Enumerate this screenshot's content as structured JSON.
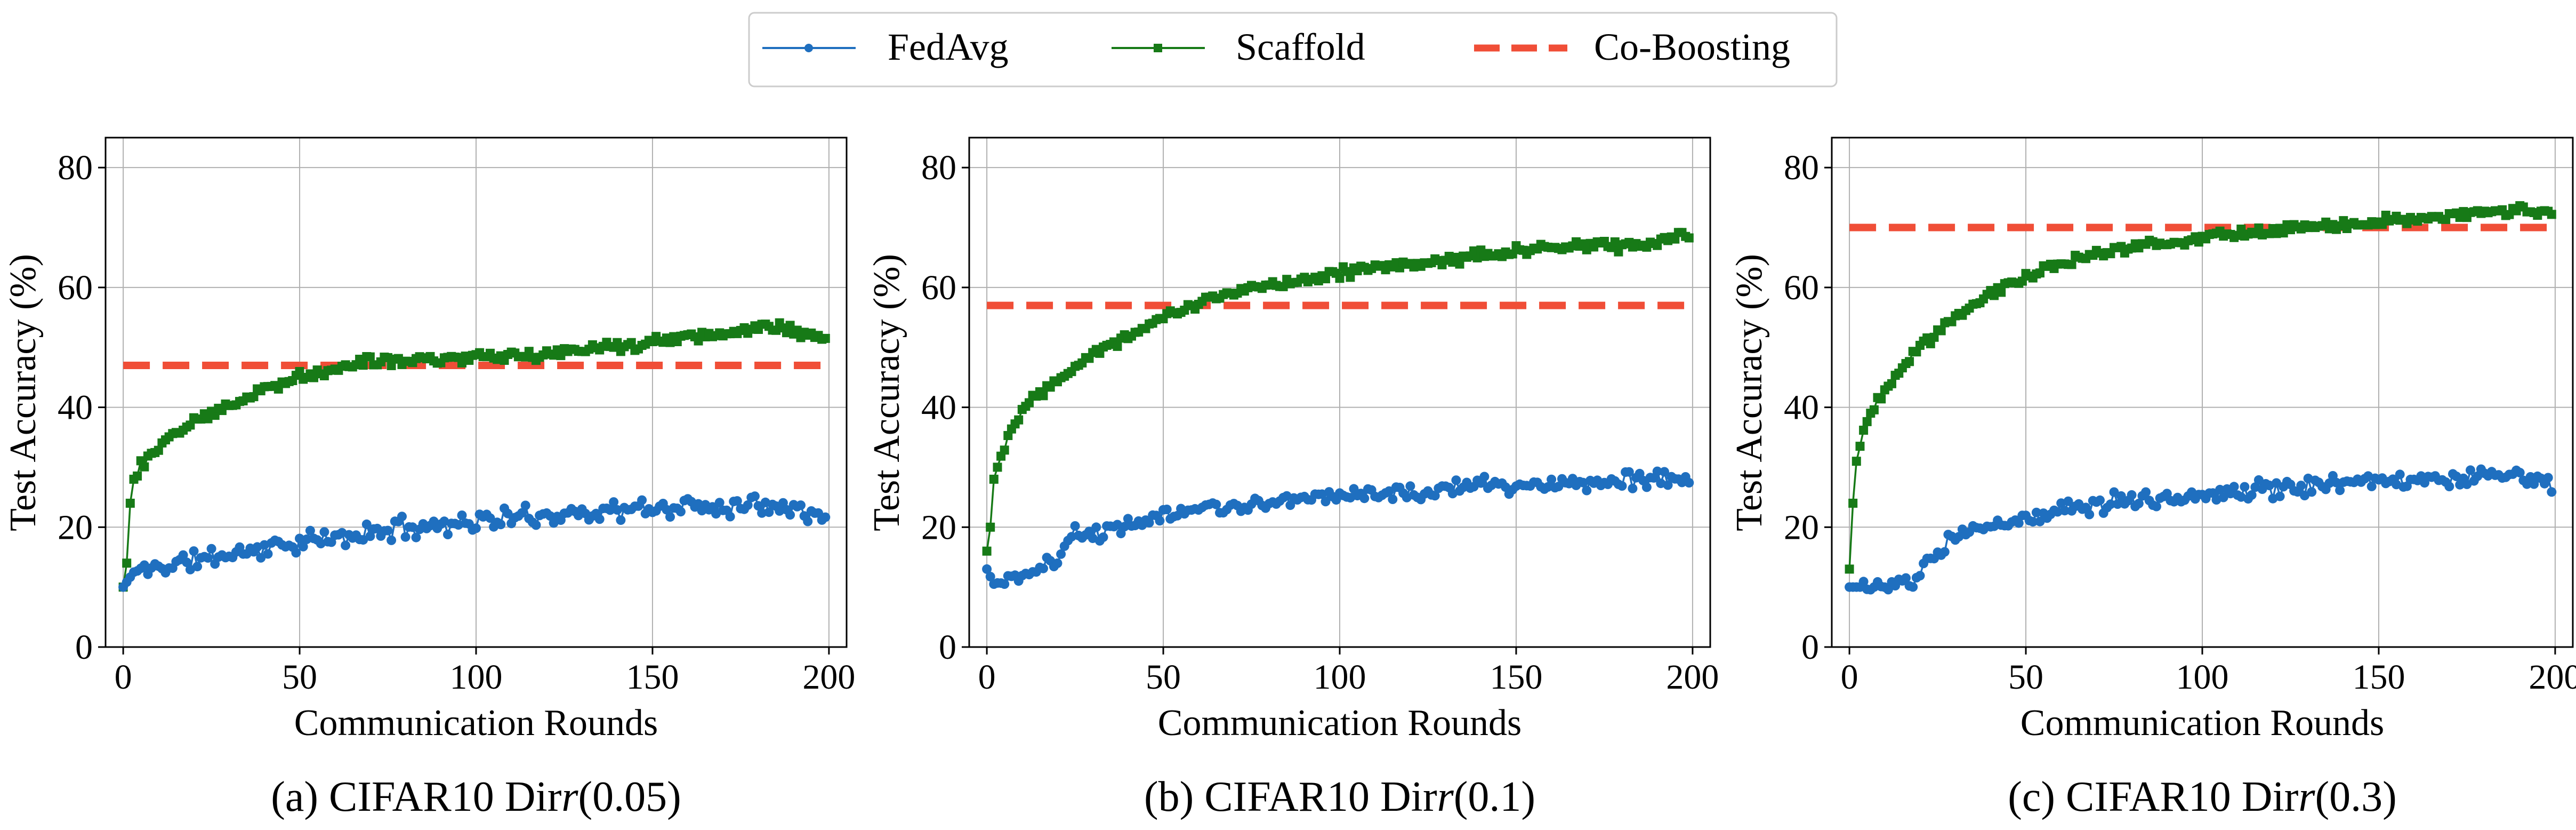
{
  "legend": [
    {
      "name": "FedAvg",
      "color": "#1f6fbf",
      "marker": "circle",
      "style": "solid"
    },
    {
      "name": "Scaffold",
      "color": "#177a17",
      "marker": "square",
      "style": "solid"
    },
    {
      "name": "Co-Boosting",
      "color": "#f04e37",
      "marker": "none",
      "style": "dashed"
    }
  ],
  "chart_data": [
    {
      "type": "line",
      "caption_prefix": "(a) CIFAR10 Dir",
      "caption_param": "(0.05)",
      "xlabel": "Communication Rounds",
      "ylabel": "Test Accuracy (%)",
      "xlim": [
        -5,
        205
      ],
      "ylim": [
        0,
        85
      ],
      "xticks": [
        0,
        50,
        100,
        150,
        200
      ],
      "yticks": [
        0,
        20,
        40,
        60,
        80
      ],
      "grid": true,
      "baseline": {
        "name": "Co-Boosting",
        "value": 47
      },
      "series": [
        {
          "name": "FedAvg",
          "anchors": [
            [
              0,
              10
            ],
            [
              3,
              12.5
            ],
            [
              10,
              13.3
            ],
            [
              20,
              14.5
            ],
            [
              30,
              15.5
            ],
            [
              40,
              16.5
            ],
            [
              50,
              17.5
            ],
            [
              60,
              18
            ],
            [
              70,
              19
            ],
            [
              80,
              20
            ],
            [
              90,
              20.5
            ],
            [
              100,
              21
            ],
            [
              110,
              21.5
            ],
            [
              120,
              22
            ],
            [
              130,
              22.5
            ],
            [
              140,
              22.8
            ],
            [
              150,
              23
            ],
            [
              160,
              23.5
            ],
            [
              170,
              23.5
            ],
            [
              180,
              24
            ],
            [
              190,
              24
            ],
            [
              199,
              21
            ]
          ],
          "noise": 1.5,
          "seed": 11
        },
        {
          "name": "Scaffold",
          "anchors": [
            [
              0,
              10
            ],
            [
              1,
              14
            ],
            [
              2,
              24
            ],
            [
              3,
              28
            ],
            [
              5,
              30.5
            ],
            [
              10,
              33
            ],
            [
              15,
              36
            ],
            [
              20,
              38
            ],
            [
              30,
              40.5
            ],
            [
              40,
              43
            ],
            [
              50,
              45
            ],
            [
              60,
              46.5
            ],
            [
              70,
              48
            ],
            [
              80,
              48
            ],
            [
              90,
              48
            ],
            [
              100,
              48.5
            ],
            [
              110,
              48.5
            ],
            [
              120,
              49
            ],
            [
              130,
              49.5
            ],
            [
              140,
              50
            ],
            [
              150,
              51
            ],
            [
              160,
              52
            ],
            [
              170,
              52
            ],
            [
              180,
              53.5
            ],
            [
              190,
              53
            ],
            [
              199,
              51
            ]
          ],
          "noise": 0.8,
          "seed": 12
        }
      ]
    },
    {
      "type": "line",
      "caption_prefix": "(b) CIFAR10 Dir",
      "caption_param": "(0.1)",
      "xlabel": "Communication Rounds",
      "ylabel": "Test Accuracy (%)",
      "xlim": [
        -5,
        205
      ],
      "ylim": [
        0,
        85
      ],
      "xticks": [
        0,
        50,
        100,
        150,
        200
      ],
      "yticks": [
        0,
        20,
        40,
        60,
        80
      ],
      "grid": true,
      "baseline": {
        "name": "Co-Boosting",
        "value": 57
      },
      "series": [
        {
          "name": "FedAvg",
          "anchors": [
            [
              0,
              13
            ],
            [
              2,
              10.5
            ],
            [
              10,
              12
            ],
            [
              20,
              14.5
            ],
            [
              25,
              19
            ],
            [
              30,
              19
            ],
            [
              40,
              20.5
            ],
            [
              50,
              22
            ],
            [
              60,
              23
            ],
            [
              70,
              23.5
            ],
            [
              80,
              24
            ],
            [
              90,
              24.5
            ],
            [
              100,
              25
            ],
            [
              110,
              25.5
            ],
            [
              120,
              26
            ],
            [
              130,
              26.5
            ],
            [
              140,
              27
            ],
            [
              150,
              27
            ],
            [
              160,
              27.5
            ],
            [
              170,
              27.5
            ],
            [
              180,
              28
            ],
            [
              190,
              28
            ],
            [
              199,
              28
            ]
          ],
          "noise": 1.2,
          "seed": 21
        },
        {
          "name": "Scaffold",
          "anchors": [
            [
              0,
              16
            ],
            [
              1,
              20
            ],
            [
              2,
              28
            ],
            [
              4,
              32
            ],
            [
              6,
              35
            ],
            [
              10,
              40
            ],
            [
              20,
              45
            ],
            [
              30,
              49
            ],
            [
              40,
              52
            ],
            [
              50,
              55
            ],
            [
              60,
              57.5
            ],
            [
              70,
              59
            ],
            [
              80,
              60.5
            ],
            [
              90,
              61.5
            ],
            [
              100,
              62.5
            ],
            [
              110,
              63
            ],
            [
              120,
              64
            ],
            [
              130,
              64.5
            ],
            [
              140,
              65.5
            ],
            [
              150,
              66
            ],
            [
              160,
              66.5
            ],
            [
              170,
              67
            ],
            [
              180,
              67
            ],
            [
              190,
              67.5
            ],
            [
              199,
              68.5
            ]
          ],
          "noise": 0.8,
          "seed": 22
        }
      ]
    },
    {
      "type": "line",
      "caption_prefix": "(c) CIFAR10 Dir",
      "caption_param": "(0.3)",
      "xlabel": "Communication Rounds",
      "ylabel": "Test Accuracy (%)",
      "xlim": [
        -5,
        205
      ],
      "ylim": [
        0,
        85
      ],
      "xticks": [
        0,
        50,
        100,
        150,
        200
      ],
      "yticks": [
        0,
        20,
        40,
        60,
        80
      ],
      "grid": true,
      "baseline": {
        "name": "Co-Boosting",
        "value": 70
      },
      "series": [
        {
          "name": "FedAvg",
          "anchors": [
            [
              0,
              10
            ],
            [
              15,
              10
            ],
            [
              20,
              12
            ],
            [
              25,
              16
            ],
            [
              30,
              18
            ],
            [
              40,
              20
            ],
            [
              50,
              21.5
            ],
            [
              60,
              23
            ],
            [
              70,
              24
            ],
            [
              80,
              24.5
            ],
            [
              90,
              25
            ],
            [
              100,
              25.5
            ],
            [
              110,
              26
            ],
            [
              120,
              26.5
            ],
            [
              130,
              27
            ],
            [
              140,
              27.5
            ],
            [
              150,
              28
            ],
            [
              160,
              28
            ],
            [
              170,
              28
            ],
            [
              180,
              28.5
            ],
            [
              190,
              29
            ],
            [
              199,
              27.5
            ]
          ],
          "noise": 1.3,
          "seed": 31
        },
        {
          "name": "Scaffold",
          "anchors": [
            [
              0,
              13
            ],
            [
              1,
              24
            ],
            [
              2,
              31
            ],
            [
              4,
              36
            ],
            [
              6,
              39
            ],
            [
              10,
              43
            ],
            [
              20,
              50
            ],
            [
              30,
              55
            ],
            [
              40,
              59
            ],
            [
              50,
              62
            ],
            [
              60,
              64
            ],
            [
              70,
              65.5
            ],
            [
              80,
              67
            ],
            [
              90,
              67.5
            ],
            [
              100,
              68
            ],
            [
              110,
              69
            ],
            [
              120,
              69.5
            ],
            [
              130,
              70
            ],
            [
              140,
              70.5
            ],
            [
              150,
              71
            ],
            [
              160,
              71.5
            ],
            [
              170,
              72
            ],
            [
              180,
              72.5
            ],
            [
              190,
              73
            ],
            [
              199,
              72.5
            ]
          ],
          "noise": 0.7,
          "seed": 32
        }
      ]
    }
  ]
}
